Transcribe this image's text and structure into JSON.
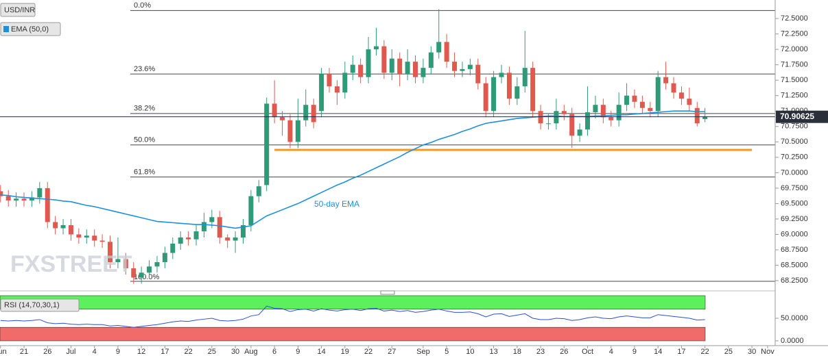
{
  "chart_data": {
    "type": "candlestick",
    "title": "USD/INR",
    "categories": [
      "Jun",
      null,
      null,
      "21",
      null,
      null,
      "26",
      null,
      null,
      "Jul",
      null,
      null,
      "4",
      null,
      null,
      "9",
      null,
      null,
      "12",
      null,
      null,
      "17",
      null,
      null,
      "22",
      null,
      null,
      "25",
      null,
      null,
      "30",
      null,
      "Aug",
      null,
      null,
      "6",
      null,
      null,
      "9",
      null,
      null,
      "14",
      null,
      null,
      "19",
      null,
      null,
      "22",
      null,
      null,
      "27",
      null,
      null,
      null,
      "Sep",
      null,
      null,
      "5",
      null,
      null,
      "10",
      null,
      null,
      "13",
      null,
      null,
      "18",
      null,
      null,
      "23",
      null,
      null,
      "26",
      null,
      null,
      "Oct",
      null,
      null,
      "4",
      null,
      null,
      "9",
      null,
      null,
      "14",
      null,
      null,
      "17",
      null,
      null,
      "22",
      null,
      null,
      "25",
      null,
      null,
      "30",
      null,
      "Nov"
    ],
    "open": [
      69.7,
      69.62,
      69.55,
      69.58,
      69.55,
      69.6,
      69.75,
      69.2,
      69.1,
      69.15,
      69.0,
      68.95,
      68.98,
      68.9,
      68.88,
      68.55,
      68.6,
      68.45,
      68.3,
      68.38,
      68.48,
      68.55,
      68.7,
      68.85,
      68.95,
      68.92,
      69.05,
      69.2,
      69.28,
      68.95,
      68.9,
      68.95,
      69.15,
      69.62,
      69.8,
      71.12,
      70.9,
      70.85,
      70.5,
      70.85,
      71.1,
      71.0,
      71.6,
      71.4,
      71.3,
      71.62,
      71.75,
      71.55,
      72.0,
      72.05,
      71.62,
      71.85,
      71.6,
      71.8,
      71.55,
      71.7,
      71.95,
      72.12,
      71.8,
      71.65,
      71.68,
      71.75,
      71.45,
      71.0,
      71.55,
      71.62,
      71.2,
      71.4,
      71.7,
      71.0,
      70.8,
      70.8,
      71.0,
      70.95,
      70.6,
      70.7,
      70.98,
      71.1,
      70.9,
      70.85,
      71.1,
      71.25,
      71.15,
      71.05,
      71.0,
      71.55,
      71.45,
      71.3,
      71.2,
      71.05,
      70.87,
      null,
      null,
      null,
      null,
      null,
      null,
      null,
      null
    ],
    "high": [
      69.8,
      69.72,
      69.68,
      69.68,
      69.7,
      69.85,
      69.85,
      69.3,
      69.25,
      69.25,
      69.1,
      69.08,
      69.08,
      69.0,
      68.98,
      68.95,
      68.7,
      68.55,
      68.48,
      68.58,
      68.65,
      68.8,
      68.95,
      69.05,
      69.05,
      69.15,
      69.35,
      69.4,
      69.38,
      69.0,
      69.05,
      69.25,
      69.72,
      69.88,
      71.22,
      71.5,
      71.0,
      70.95,
      71.2,
      71.35,
      71.2,
      71.7,
      71.7,
      71.5,
      71.8,
      71.9,
      71.85,
      72.2,
      72.35,
      72.15,
      72.0,
      71.95,
      72.0,
      71.9,
      71.85,
      72.05,
      72.65,
      72.25,
      71.95,
      71.8,
      71.85,
      71.85,
      71.55,
      71.65,
      71.75,
      71.72,
      71.55,
      72.3,
      71.8,
      71.1,
      70.95,
      71.2,
      71.1,
      71.05,
      70.8,
      71.4,
      71.25,
      71.2,
      71.0,
      71.3,
      71.45,
      71.35,
      71.25,
      71.15,
      71.65,
      71.8,
      71.55,
      71.4,
      71.38,
      71.15,
      71.05,
      null,
      null,
      null,
      null,
      null,
      null,
      null,
      null
    ],
    "low": [
      69.52,
      69.45,
      69.45,
      69.45,
      69.45,
      69.5,
      69.1,
      69.0,
      69.0,
      68.9,
      68.85,
      68.85,
      68.8,
      68.78,
      68.45,
      68.45,
      68.35,
      68.2,
      68.2,
      68.28,
      68.38,
      68.45,
      68.6,
      68.75,
      68.82,
      68.82,
      68.95,
      69.1,
      68.85,
      68.78,
      68.7,
      68.85,
      69.05,
      69.52,
      69.7,
      70.8,
      70.6,
      70.4,
      70.4,
      70.75,
      70.72,
      70.9,
      71.3,
      71.1,
      71.2,
      71.5,
      71.45,
      71.45,
      71.9,
      71.52,
      71.5,
      71.4,
      71.5,
      71.45,
      71.45,
      71.6,
      71.85,
      71.7,
      71.55,
      71.55,
      71.58,
      71.35,
      70.9,
      70.9,
      71.45,
      71.1,
      71.1,
      71.3,
      70.9,
      70.7,
      70.7,
      70.7,
      70.85,
      70.4,
      70.5,
      70.6,
      70.88,
      70.8,
      70.75,
      70.75,
      71.0,
      71.05,
      70.95,
      70.9,
      70.9,
      71.35,
      71.2,
      71.1,
      71.0,
      70.75,
      70.82,
      null,
      null,
      null,
      null,
      null,
      null,
      null,
      null
    ],
    "close": [
      69.62,
      69.55,
      69.58,
      69.55,
      69.6,
      69.75,
      69.2,
      69.1,
      69.15,
      69.0,
      68.95,
      68.98,
      68.9,
      68.88,
      68.55,
      68.6,
      68.45,
      68.3,
      68.38,
      68.48,
      68.55,
      68.7,
      68.85,
      68.95,
      68.92,
      69.05,
      69.2,
      69.28,
      68.95,
      68.9,
      68.95,
      69.15,
      69.62,
      69.78,
      71.12,
      70.9,
      70.85,
      70.5,
      70.85,
      71.1,
      70.82,
      71.6,
      71.4,
      71.3,
      71.62,
      71.75,
      71.55,
      72.0,
      72.05,
      71.62,
      71.85,
      71.6,
      71.8,
      71.55,
      71.7,
      71.95,
      72.12,
      71.8,
      71.65,
      71.68,
      71.75,
      71.45,
      71.0,
      71.55,
      71.62,
      71.2,
      71.4,
      71.7,
      71.0,
      70.8,
      70.8,
      71.0,
      70.95,
      70.6,
      70.7,
      70.98,
      71.1,
      70.9,
      70.85,
      71.1,
      71.25,
      71.15,
      71.05,
      71.0,
      71.55,
      71.45,
      71.3,
      71.2,
      71.1,
      70.8,
      70.91,
      null,
      null,
      null,
      null,
      null,
      null,
      null,
      null
    ],
    "up_color": "#2f9a78",
    "down_color": "#e0594f",
    "ylim": [
      68.14,
      72.8
    ],
    "yticks": [
      {
        "value": 68.25,
        "label": "68.2500"
      },
      {
        "value": 68.5,
        "label": "68.5000"
      },
      {
        "value": 68.75,
        "label": "68.7500"
      },
      {
        "value": 69,
        "label": "69.0000"
      },
      {
        "value": 69.25,
        "label": "69.2500"
      },
      {
        "value": 69.5,
        "label": "69.5000"
      },
      {
        "value": 69.75,
        "label": "69.7500"
      },
      {
        "value": 70,
        "label": "70.0000"
      },
      {
        "value": 70.25,
        "label": "70.2500"
      },
      {
        "value": 70.5,
        "label": "70.5000"
      },
      {
        "value": 70.75,
        "label": "70.7500"
      },
      {
        "value": 71,
        "label": "71.0000"
      },
      {
        "value": 71.25,
        "label": "71.2500"
      },
      {
        "value": 71.5,
        "label": "71.5000"
      },
      {
        "value": 71.75,
        "label": "71.7500"
      },
      {
        "value": 72,
        "label": "72.0000"
      },
      {
        "value": 72.25,
        "label": "72.2500"
      },
      {
        "value": 72.5,
        "label": "72.5000"
      }
    ],
    "grid": false,
    "indicators": [
      {
        "name": "EMA (50,0)",
        "label": "50-day EMA",
        "color": "#1e8fe0",
        "values": [
          69.64,
          69.63,
          69.61,
          69.6,
          69.59,
          69.58,
          69.57,
          69.56,
          69.54,
          69.53,
          69.5,
          69.47,
          69.45,
          69.42,
          69.39,
          69.36,
          69.33,
          69.3,
          69.27,
          69.24,
          69.21,
          69.2,
          69.19,
          69.18,
          69.17,
          69.16,
          69.16,
          69.15,
          69.14,
          69.12,
          69.1,
          69.12,
          69.14,
          69.22,
          69.3,
          69.35,
          69.4,
          69.45,
          69.5,
          69.56,
          69.62,
          69.68,
          69.74,
          69.8,
          69.85,
          69.91,
          69.96,
          70.02,
          70.08,
          70.14,
          70.2,
          70.26,
          70.33,
          70.39,
          70.45,
          70.49,
          70.54,
          70.58,
          70.62,
          70.67,
          70.71,
          70.76,
          70.8,
          70.82,
          70.84,
          70.86,
          70.88,
          70.89,
          70.9,
          70.91,
          70.92,
          70.92,
          70.91,
          70.91,
          70.91,
          70.91,
          70.92,
          70.92,
          70.93,
          70.94,
          70.94,
          70.95,
          70.96,
          70.97,
          70.98,
          70.99,
          71.0,
          71.0,
          71.0,
          70.99,
          70.99,
          null,
          null,
          null,
          null,
          null,
          null,
          null,
          null
        ]
      }
    ],
    "fibonacci": [
      {
        "label": "0.0%",
        "value": 72.63
      },
      {
        "label": "23.6%",
        "value": 71.6
      },
      {
        "label": "38.2%",
        "value": 70.96
      },
      {
        "label": "50.0%",
        "value": 70.45
      },
      {
        "label": "61.8%",
        "value": 69.93
      },
      {
        "label": "100.0%",
        "value": 68.24
      }
    ],
    "support": {
      "value": 70.37,
      "color": "#f39a1e"
    },
    "last_price": 70.90625,
    "watermark": "FXSTREET",
    "rsi": {
      "title": "RSI (14,70,30,1)",
      "color": "#2a4fd6",
      "values": [
        45,
        44,
        45,
        44,
        45,
        47,
        40,
        38,
        39,
        37,
        36,
        37,
        36,
        36,
        33,
        34,
        32,
        30,
        32,
        34,
        36,
        39,
        42,
        44,
        43,
        46,
        48,
        50,
        45,
        44,
        45,
        48,
        55,
        58,
        77,
        72,
        71,
        65,
        69,
        70,
        66,
        71,
        68,
        66,
        69,
        70,
        67,
        71,
        72,
        66,
        68,
        65,
        67,
        63,
        65,
        68,
        70,
        66,
        63,
        63,
        64,
        60,
        53,
        59,
        60,
        54,
        57,
        60,
        50,
        47,
        47,
        50,
        49,
        45,
        47,
        51,
        53,
        50,
        49,
        53,
        55,
        53,
        51,
        51,
        58,
        56,
        54,
        52,
        50,
        46,
        47,
        null,
        null,
        null,
        null,
        null,
        null,
        null,
        null
      ],
      "ylim": [
        -10.6,
        103
      ],
      "yticks": [
        {
          "value": 0,
          "label": "0.0000"
        },
        {
          "value": 50,
          "label": "50.0000"
        }
      ],
      "overbought": [
        70,
        100
      ],
      "oversold": [
        0,
        30
      ],
      "overbought_color": "#5cf05c",
      "oversold_color": "#f26b6b"
    }
  }
}
